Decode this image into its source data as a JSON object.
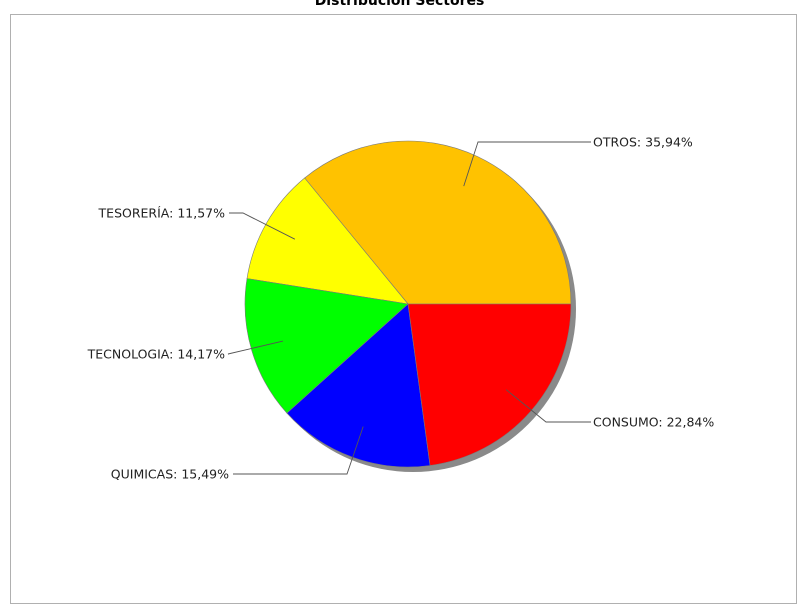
{
  "chart_data": {
    "type": "pie",
    "title": "Distribución Sectores",
    "slices": [
      {
        "name": "OTROS",
        "value": 35.94,
        "label": "OTROS: 35,94%",
        "color": "#FFC200"
      },
      {
        "name": "CONSUMO",
        "value": 22.84,
        "label": "CONSUMO: 22,84%",
        "color": "#FF0000"
      },
      {
        "name": "QUIMICAS",
        "value": 15.49,
        "label": "QUIMICAS: 15,49%",
        "color": "#0000FF"
      },
      {
        "name": "TECNOLOGIA",
        "value": 14.17,
        "label": "TECNOLOGIA: 14,17%",
        "color": "#00FF00"
      },
      {
        "name": "TESORERÍA",
        "value": 11.57,
        "label": "TESORERÍA: 11,57%",
        "color": "#FFFF00"
      }
    ],
    "start_angle_deg": 0,
    "direction": "clockwise",
    "legend": "none"
  }
}
